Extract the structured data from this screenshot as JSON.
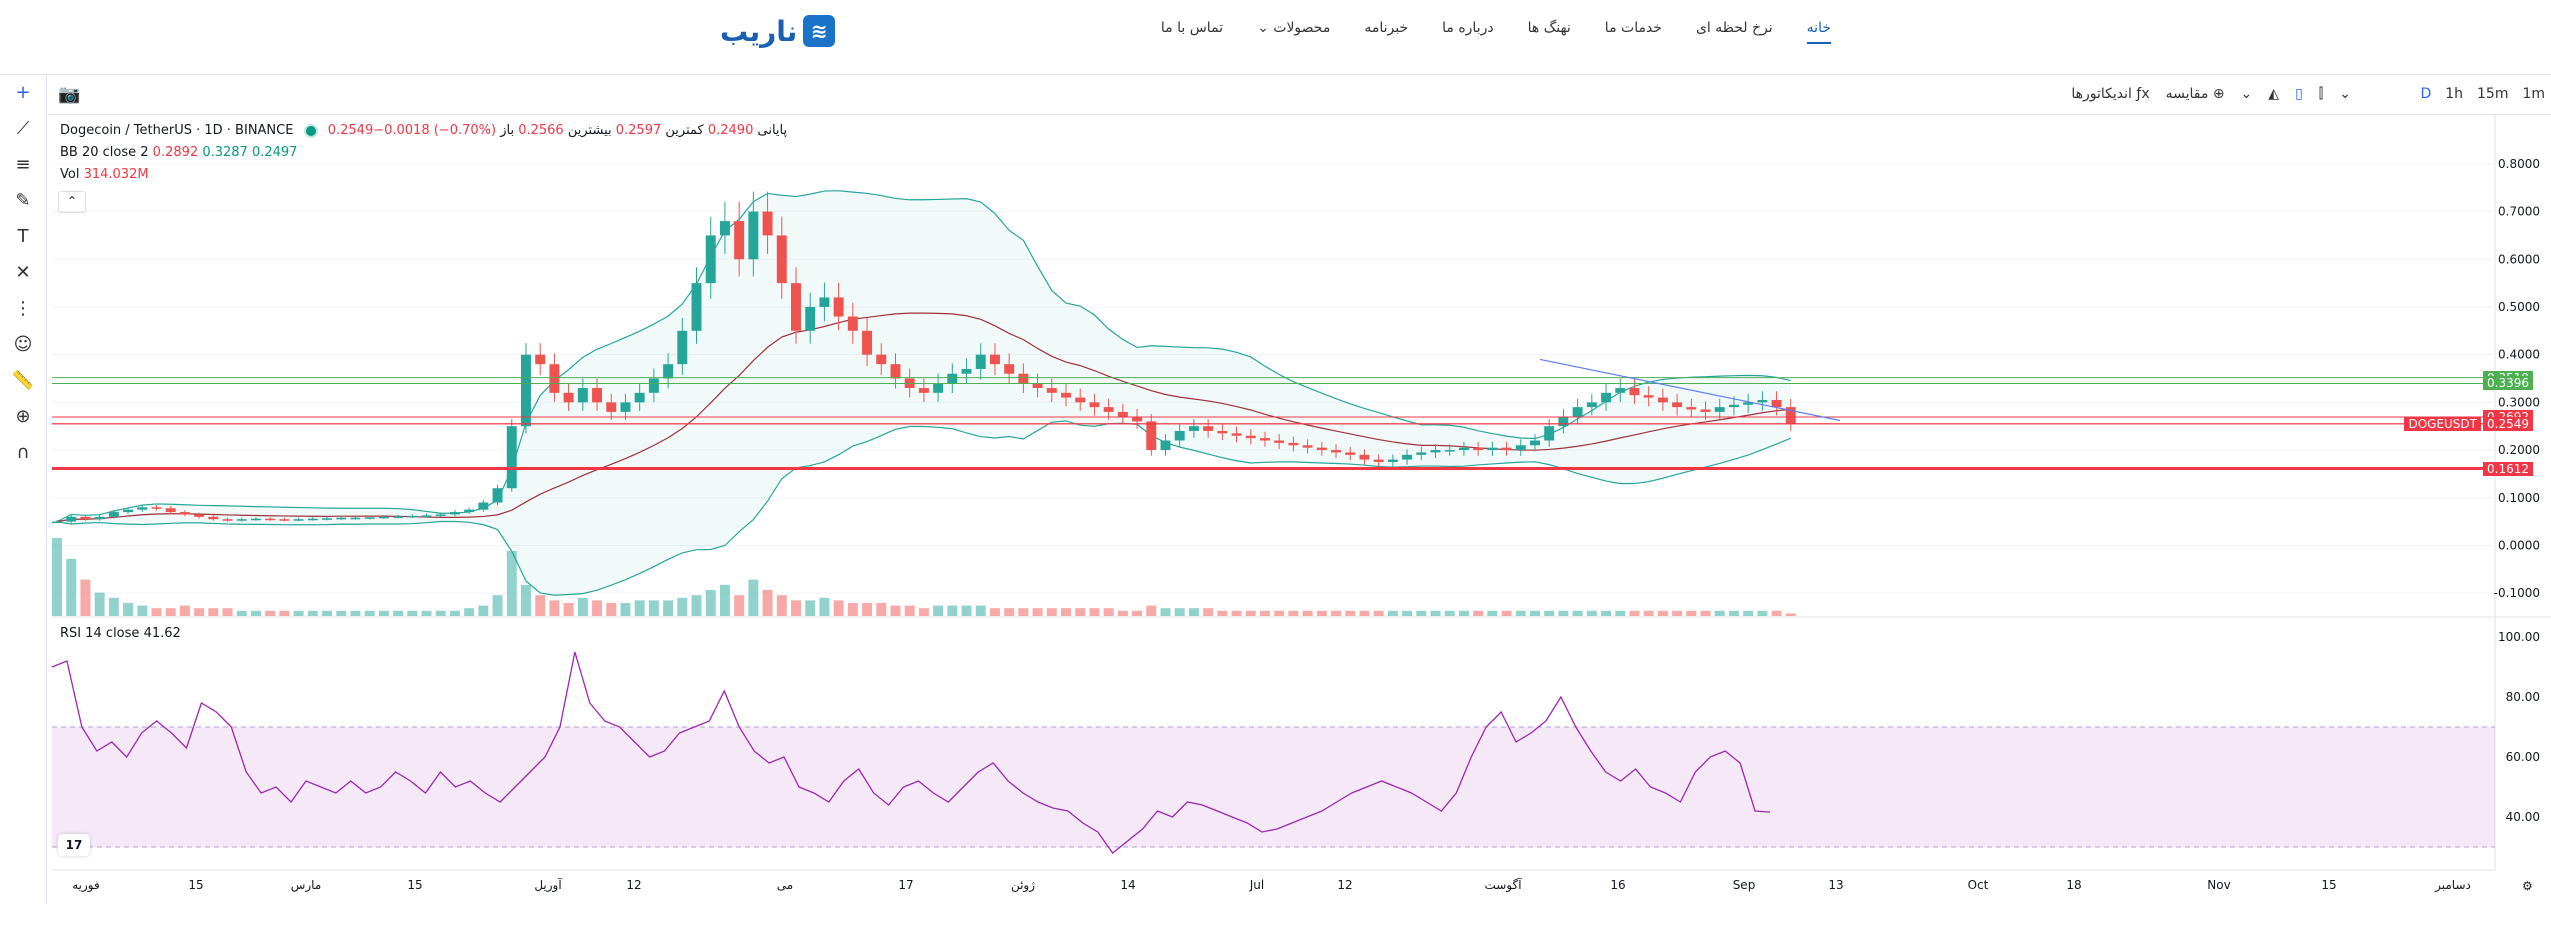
{
  "nav": {
    "logo_text": "ناریب",
    "items": [
      {
        "label": "خانه",
        "active": true
      },
      {
        "label": "نرخ لحظه ای"
      },
      {
        "label": "خدمات ما"
      },
      {
        "label": "نهنگ ها"
      },
      {
        "label": "درباره ما"
      },
      {
        "label": "خبرنامه"
      },
      {
        "label": "محصولات"
      },
      {
        "label": "تماس با ما"
      }
    ]
  },
  "toolbar": {
    "intervals": [
      "1m",
      "15m",
      "1h",
      "D"
    ],
    "indicators_label": "اندیکاتورها",
    "compare_label": "مقایسه"
  },
  "legend": {
    "symbol": "Dogecoin / TetherUS · 1D · BINANCE",
    "open_label": "باز",
    "open": "0.2566",
    "high_label": "بیشترین",
    "high": "0.2597",
    "low_label": "کمترین",
    "low": "0.2490",
    "close_label": "پایانی",
    "close_change": "0.2549−0.0018 (−0.70%)",
    "bb_label": "BB 20 close 2",
    "bb_basis": "0.2892",
    "bb_upper": "0.3287",
    "bb_lower": "0.2497",
    "vol_label": "Vol",
    "vol_value": "314.032M",
    "rsi_label": "RSI 14 close",
    "rsi_value": "41.62"
  },
  "chart_data": {
    "type": "candlestick",
    "symbol": "DOGEUSDT",
    "x_dates": [
      "فوریه",
      "15",
      "مارس",
      "15",
      "آوریل",
      "12",
      "می",
      "17",
      "ژوئن",
      "14",
      "Jul",
      "12",
      "آگوست",
      "16",
      "Sep",
      "13",
      "Oct",
      "18",
      "Nov",
      "15",
      "دسامبر"
    ],
    "price_ticks": [
      "0.8000",
      "0.7000",
      "0.6000",
      "0.5000",
      "0.4000",
      "0.3000",
      "0.2000",
      "0.1000",
      "0.0000",
      "-0.1000"
    ],
    "price_ylim": [
      -0.15,
      0.85
    ],
    "price_levels": [
      {
        "label": "0.3519",
        "value": 0.3519,
        "color": "#4caf50"
      },
      {
        "label": "0.3396",
        "value": 0.3396,
        "color": "#4caf50"
      },
      {
        "label": "0.2692",
        "value": 0.2692,
        "color": "#f23645"
      },
      {
        "label": "0.2551",
        "value": 0.2551,
        "color": "#f23645"
      },
      {
        "label": "0.2549",
        "value": 0.2549,
        "color": "#f23645"
      },
      {
        "label": "0.1612",
        "value": 0.1612,
        "color": "#f23645"
      }
    ],
    "symbol_tag": "DOGEUSDT",
    "close_series": [
      0.05,
      0.06,
      0.055,
      0.06,
      0.07,
      0.075,
      0.08,
      0.078,
      0.07,
      0.065,
      0.06,
      0.055,
      0.053,
      0.055,
      0.056,
      0.055,
      0.054,
      0.055,
      0.056,
      0.057,
      0.058,
      0.058,
      0.059,
      0.06,
      0.061,
      0.062,
      0.063,
      0.065,
      0.07,
      0.075,
      0.09,
      0.12,
      0.25,
      0.4,
      0.38,
      0.32,
      0.3,
      0.33,
      0.3,
      0.28,
      0.3,
      0.32,
      0.35,
      0.38,
      0.45,
      0.55,
      0.65,
      0.68,
      0.6,
      0.7,
      0.65,
      0.55,
      0.45,
      0.5,
      0.52,
      0.48,
      0.45,
      0.4,
      0.38,
      0.35,
      0.33,
      0.32,
      0.34,
      0.36,
      0.37,
      0.4,
      0.38,
      0.36,
      0.34,
      0.33,
      0.32,
      0.31,
      0.3,
      0.29,
      0.28,
      0.27,
      0.26,
      0.2,
      0.22,
      0.24,
      0.25,
      0.24,
      0.235,
      0.23,
      0.225,
      0.22,
      0.215,
      0.21,
      0.205,
      0.2,
      0.195,
      0.19,
      0.18,
      0.175,
      0.18,
      0.19,
      0.195,
      0.2,
      0.2,
      0.205,
      0.2,
      0.205,
      0.2,
      0.21,
      0.22,
      0.25,
      0.27,
      0.29,
      0.3,
      0.32,
      0.33,
      0.315,
      0.31,
      0.3,
      0.29,
      0.285,
      0.28,
      0.29,
      0.295,
      0.3,
      0.305,
      0.29,
      0.255
    ],
    "rsi_ticks": [
      "100.00",
      "80.00",
      "60.00",
      "40.00"
    ],
    "rsi_ylim": [
      25,
      105
    ],
    "rsi_band": [
      30,
      70
    ],
    "rsi_series": [
      90,
      92,
      70,
      62,
      65,
      60,
      68,
      72,
      68,
      63,
      78,
      75,
      70,
      55,
      48,
      50,
      45,
      52,
      50,
      48,
      52,
      48,
      50,
      55,
      52,
      48,
      55,
      50,
      52,
      48,
      45,
      50,
      55,
      60,
      70,
      95,
      78,
      72,
      70,
      65,
      60,
      62,
      68,
      70,
      72,
      82,
      70,
      62,
      58,
      60,
      50,
      48,
      45,
      52,
      56,
      48,
      44,
      50,
      52,
      48,
      45,
      50,
      55,
      58,
      52,
      48,
      45,
      43,
      42,
      38,
      35,
      28,
      32,
      36,
      42,
      40,
      45,
      44,
      42,
      40,
      38,
      35,
      36,
      38,
      40,
      42,
      45,
      48,
      50,
      52,
      50,
      48,
      45,
      42,
      48,
      60,
      70,
      75,
      65,
      68,
      72,
      80,
      70,
      62,
      55,
      52,
      56,
      50,
      48,
      45,
      55,
      60,
      62,
      58,
      42,
      41.62
    ],
    "volume_series": [
      30,
      22,
      14,
      9,
      7,
      5,
      4,
      3,
      3,
      4,
      3,
      3,
      3,
      2,
      2,
      2,
      2,
      2,
      2,
      2,
      2,
      2,
      2,
      2,
      2,
      2,
      2,
      2,
      2,
      3,
      4,
      8,
      25,
      12,
      8,
      6,
      5,
      7,
      6,
      5,
      5,
      6,
      6,
      6,
      7,
      8,
      10,
      12,
      8,
      14,
      10,
      8,
      6,
      6,
      7,
      6,
      5,
      5,
      5,
      4,
      4,
      3,
      4,
      4,
      4,
      4,
      3,
      3,
      3,
      3,
      3,
      3,
      3,
      3,
      3,
      2,
      2,
      4,
      3,
      3,
      3,
      3,
      2,
      2,
      2,
      2,
      2,
      2,
      2,
      2,
      2,
      2,
      2,
      2,
      2,
      2,
      2,
      2,
      2,
      2,
      2,
      2,
      2,
      2,
      2,
      2,
      2,
      2,
      2,
      2,
      2,
      2,
      2,
      2,
      2,
      2,
      2,
      2,
      2,
      2,
      2,
      2,
      1
    ]
  }
}
